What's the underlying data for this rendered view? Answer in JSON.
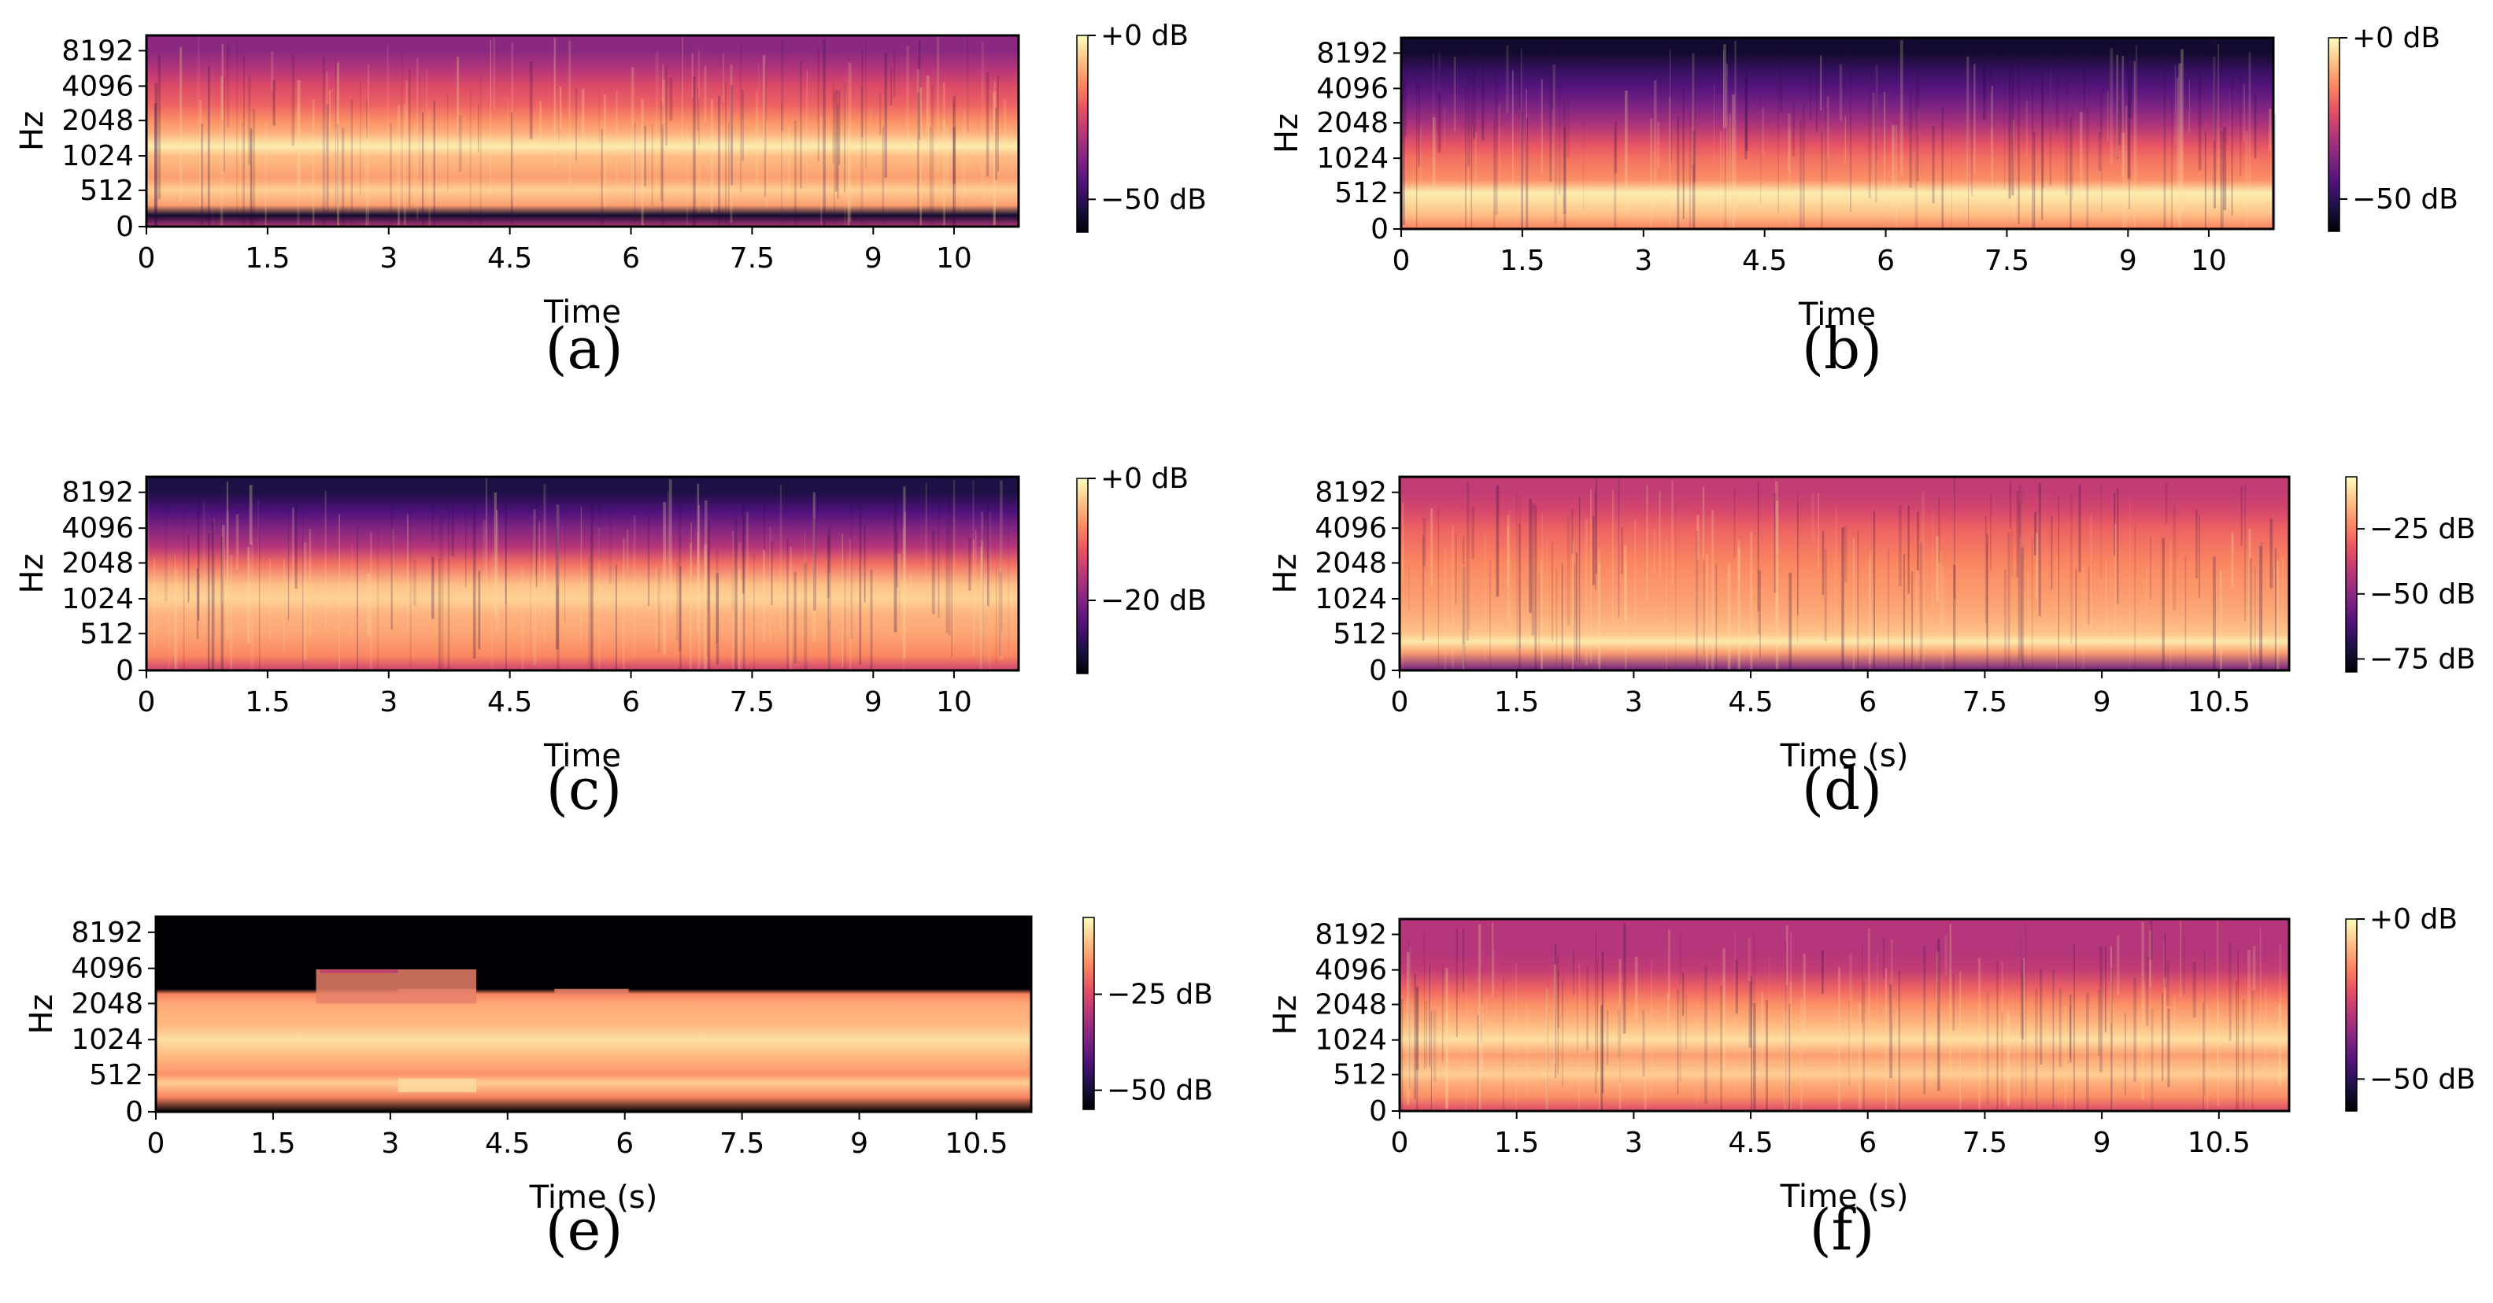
{
  "figure": {
    "caption_labels": [
      "(a)",
      "(b)",
      "(c)",
      "(d)",
      "(e)",
      "(f)"
    ]
  },
  "palette": {
    "magma": [
      "#000004",
      "#1c1044",
      "#4f127b",
      "#812581",
      "#b5367a",
      "#e55064",
      "#fb8761",
      "#fec287",
      "#fcfdbf"
    ]
  },
  "chart_data": [
    {
      "id": "a",
      "type": "heatmap",
      "caption": "(a)",
      "xlabel": "Time",
      "ylabel": "Hz",
      "xticks": [
        "0",
        "1.5",
        "3",
        "4.5",
        "6",
        "7.5",
        "9",
        "10"
      ],
      "xtick_values": [
        0,
        1.5,
        3,
        4.5,
        6,
        7.5,
        9,
        10
      ],
      "xlim": [
        0,
        10.8
      ],
      "yticks": [
        "0",
        "512",
        "1024",
        "2048",
        "4096",
        "8192"
      ],
      "colorbar_labels": [
        "+0 dB",
        "−50 dB"
      ],
      "colorbar_values": [
        0,
        -50
      ],
      "colorbar_range": [
        -60,
        0
      ],
      "bands": [
        {
          "hz": "0",
          "db": -30
        },
        {
          "hz": "160",
          "db": -55
        },
        {
          "hz": "300",
          "db": -12
        },
        {
          "hz": "512",
          "db": -6
        },
        {
          "hz": "700",
          "db": -12
        },
        {
          "hz": "1024",
          "db": -8
        },
        {
          "hz": "1300",
          "db": -2
        },
        {
          "hz": "1700",
          "db": -10
        },
        {
          "hz": "2048",
          "db": -14
        },
        {
          "hz": "3000",
          "db": -20
        },
        {
          "hz": "4096",
          "db": -24
        },
        {
          "hz": "6000",
          "db": -30
        },
        {
          "hz": "8192",
          "db": -36
        }
      ]
    },
    {
      "id": "b",
      "type": "heatmap",
      "caption": "(b)",
      "xlabel": "Time",
      "ylabel": "Hz",
      "xticks": [
        "0",
        "1.5",
        "3",
        "4.5",
        "6",
        "7.5",
        "9",
        "10"
      ],
      "xtick_values": [
        0,
        1.5,
        3,
        4.5,
        6,
        7.5,
        9,
        10
      ],
      "xlim": [
        0,
        10.8
      ],
      "yticks": [
        "0",
        "512",
        "1024",
        "2048",
        "4096",
        "8192"
      ],
      "colorbar_labels": [
        "+0 dB",
        "−50 dB"
      ],
      "colorbar_values": [
        0,
        -50
      ],
      "colorbar_range": [
        -60,
        0
      ],
      "bands": [
        {
          "hz": "0",
          "db": -16
        },
        {
          "hz": "200",
          "db": -8
        },
        {
          "hz": "400",
          "db": -4
        },
        {
          "hz": "512",
          "db": -2
        },
        {
          "hz": "700",
          "db": -14
        },
        {
          "hz": "1024",
          "db": -18
        },
        {
          "hz": "1400",
          "db": -22
        },
        {
          "hz": "2048",
          "db": -32
        },
        {
          "hz": "3000",
          "db": -38
        },
        {
          "hz": "4096",
          "db": -44
        },
        {
          "hz": "6000",
          "db": -48
        },
        {
          "hz": "8192",
          "db": -55
        }
      ]
    },
    {
      "id": "c",
      "type": "heatmap",
      "caption": "(c)",
      "xlabel": "Time",
      "ylabel": "Hz",
      "xticks": [
        "0",
        "1.5",
        "3",
        "4.5",
        "6",
        "7.5",
        "9",
        "10"
      ],
      "xtick_values": [
        0,
        1.5,
        3,
        4.5,
        6,
        7.5,
        9,
        10
      ],
      "xlim": [
        0,
        10.8
      ],
      "yticks": [
        "0",
        "512",
        "1024",
        "2048",
        "4096",
        "8192"
      ],
      "colorbar_labels": [
        "+0 dB",
        "−20 dB"
      ],
      "colorbar_values": [
        0,
        -20
      ],
      "colorbar_range": [
        -32,
        0
      ],
      "bands": [
        {
          "hz": "0",
          "db": -14
        },
        {
          "hz": "200",
          "db": -8
        },
        {
          "hz": "512",
          "db": -6
        },
        {
          "hz": "800",
          "db": -5
        },
        {
          "hz": "1024",
          "db": -3
        },
        {
          "hz": "1400",
          "db": -4
        },
        {
          "hz": "2048",
          "db": -10
        },
        {
          "hz": "3000",
          "db": -16
        },
        {
          "hz": "4096",
          "db": -20
        },
        {
          "hz": "6000",
          "db": -24
        },
        {
          "hz": "8192",
          "db": -28
        }
      ]
    },
    {
      "id": "d",
      "type": "heatmap",
      "caption": "(d)",
      "xlabel": "Time (s)",
      "ylabel": "Hz",
      "xticks": [
        "0",
        "1.5",
        "3",
        "4.5",
        "6",
        "7.5",
        "9",
        "10.5"
      ],
      "xtick_values": [
        0,
        1.5,
        3,
        4.5,
        6,
        7.5,
        9,
        10.5
      ],
      "xlim": [
        0,
        11.4
      ],
      "yticks": [
        "0",
        "512",
        "1024",
        "2048",
        "4096",
        "8192"
      ],
      "colorbar_labels": [
        "−25 dB",
        "−50 dB",
        "−75 dB"
      ],
      "colorbar_values": [
        -25,
        -50,
        -75
      ],
      "colorbar_range": [
        -80,
        -5
      ],
      "bands": [
        {
          "hz": "0",
          "db": -55
        },
        {
          "hz": "250",
          "db": -20
        },
        {
          "hz": "400",
          "db": -8
        },
        {
          "hz": "512",
          "db": -14
        },
        {
          "hz": "800",
          "db": -18
        },
        {
          "hz": "1024",
          "db": -20
        },
        {
          "hz": "2048",
          "db": -24
        },
        {
          "hz": "4096",
          "db": -30
        },
        {
          "hz": "6000",
          "db": -36
        },
        {
          "hz": "8192",
          "db": -40
        }
      ]
    },
    {
      "id": "e",
      "type": "heatmap",
      "caption": "(e)",
      "xlabel": "Time (s)",
      "ylabel": "Hz",
      "xticks": [
        "0",
        "1.5",
        "3",
        "4.5",
        "6",
        "7.5",
        "9",
        "10.5"
      ],
      "xtick_values": [
        0,
        1.5,
        3,
        4.5,
        6,
        7.5,
        9,
        10.5
      ],
      "xlim": [
        0,
        11.2
      ],
      "yticks": [
        "0",
        "512",
        "1024",
        "2048",
        "4096",
        "8192"
      ],
      "colorbar_labels": [
        "−25 dB",
        "−50 dB"
      ],
      "colorbar_values": [
        -25,
        -50
      ],
      "colorbar_range": [
        -55,
        -5
      ],
      "bands": [
        {
          "hz": "0",
          "db": -55
        },
        {
          "hz": "200",
          "db": -18
        },
        {
          "hz": "400",
          "db": -10
        },
        {
          "hz": "512",
          "db": -16
        },
        {
          "hz": "800",
          "db": -12
        },
        {
          "hz": "1024",
          "db": -8
        },
        {
          "hz": "1400",
          "db": -12
        },
        {
          "hz": "2048",
          "db": -14
        },
        {
          "hz": "2600",
          "db": -18
        },
        {
          "hz": "2900",
          "db": -55
        },
        {
          "hz": "8192",
          "db": -55
        }
      ]
    },
    {
      "id": "f",
      "type": "heatmap",
      "caption": "(f)",
      "xlabel": "Time (s)",
      "ylabel": "Hz",
      "xticks": [
        "0",
        "1.5",
        "3",
        "4.5",
        "6",
        "7.5",
        "9",
        "10.5"
      ],
      "xtick_values": [
        0,
        1.5,
        3,
        4.5,
        6,
        7.5,
        9,
        10.5
      ],
      "xlim": [
        0,
        11.4
      ],
      "yticks": [
        "0",
        "512",
        "1024",
        "2048",
        "4096",
        "8192"
      ],
      "colorbar_labels": [
        "+0 dB",
        "−50 dB"
      ],
      "colorbar_values": [
        0,
        -50
      ],
      "colorbar_range": [
        -60,
        0
      ],
      "bands": [
        {
          "hz": "0",
          "db": -24
        },
        {
          "hz": "200",
          "db": -14
        },
        {
          "hz": "400",
          "db": -10
        },
        {
          "hz": "512",
          "db": -6
        },
        {
          "hz": "800",
          "db": -12
        },
        {
          "hz": "1024",
          "db": -4
        },
        {
          "hz": "1400",
          "db": -8
        },
        {
          "hz": "2048",
          "db": -14
        },
        {
          "hz": "3000",
          "db": -20
        },
        {
          "hz": "4096",
          "db": -28
        },
        {
          "hz": "6000",
          "db": -30
        },
        {
          "hz": "8192",
          "db": -30
        }
      ]
    }
  ]
}
